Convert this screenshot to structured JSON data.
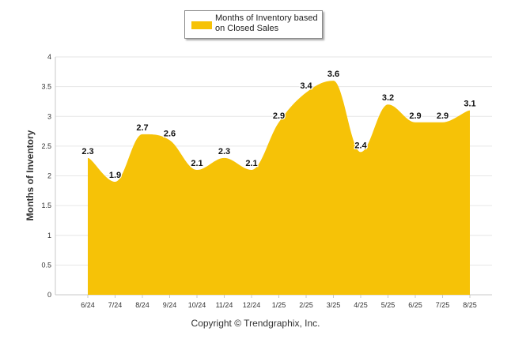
{
  "chart_data": {
    "type": "area",
    "categories": [
      "6/24",
      "7/24",
      "8/24",
      "9/24",
      "10/24",
      "11/24",
      "12/24",
      "1/25",
      "2/25",
      "3/25",
      "4/25",
      "5/25",
      "6/25",
      "7/25",
      "8/25"
    ],
    "series": [
      {
        "name": "Months of Inventory based on Closed Sales",
        "values": [
          2.3,
          1.9,
          2.7,
          2.6,
          2.1,
          2.3,
          2.1,
          2.9,
          3.4,
          3.6,
          2.4,
          3.2,
          2.9,
          2.9,
          3.1
        ],
        "color": "#f6c207"
      }
    ],
    "ylabel": "Months of Inventory",
    "ylim": [
      0,
      4
    ],
    "yticks": [
      "0",
      "0.5",
      "1",
      "1.5",
      "2",
      "2.5",
      "3",
      "3.5",
      "4"
    ],
    "grid": true,
    "legend_position": "top-center"
  },
  "legend": {
    "label": "Months of Inventory based on Closed Sales",
    "color": "#f6c207"
  },
  "footer": {
    "copyright": "Copyright © Trendgraphix, Inc."
  }
}
